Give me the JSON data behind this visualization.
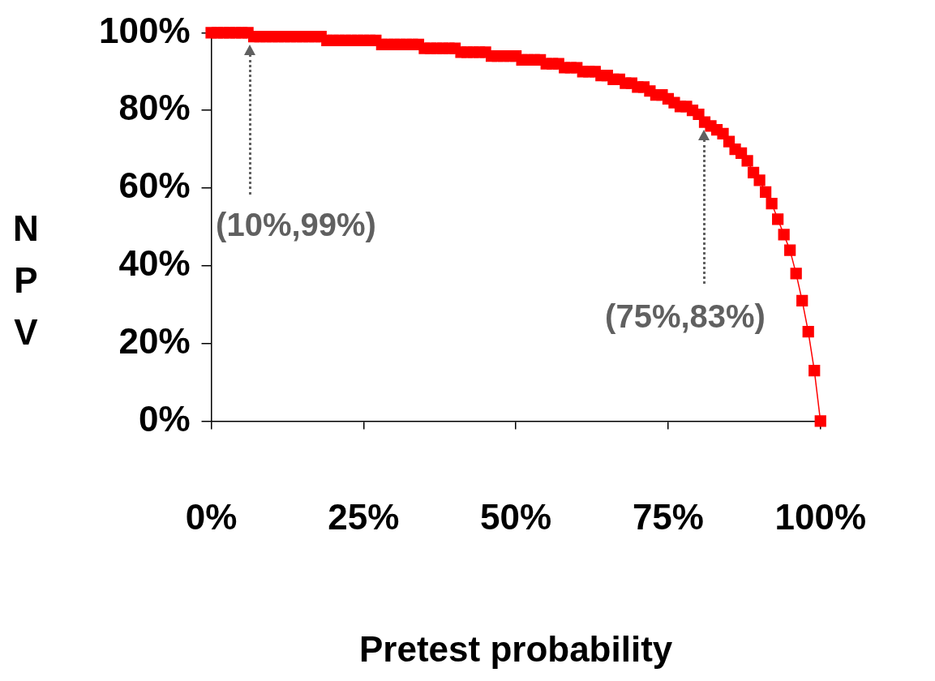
{
  "chart_data": {
    "type": "line",
    "xlabel": "Pretest probability",
    "ylabel": "NPV",
    "x": [
      0,
      1,
      2,
      3,
      4,
      5,
      6,
      7,
      8,
      9,
      10,
      11,
      12,
      13,
      14,
      15,
      16,
      17,
      18,
      19,
      20,
      21,
      22,
      23,
      24,
      25,
      26,
      27,
      28,
      29,
      30,
      31,
      32,
      33,
      34,
      35,
      36,
      37,
      38,
      39,
      40,
      41,
      42,
      43,
      44,
      45,
      46,
      47,
      48,
      49,
      50,
      51,
      52,
      53,
      54,
      55,
      56,
      57,
      58,
      59,
      60,
      61,
      62,
      63,
      64,
      65,
      66,
      67,
      68,
      69,
      70,
      71,
      72,
      73,
      74,
      75,
      76,
      77,
      78,
      79,
      80,
      81,
      82,
      83,
      84,
      85,
      86,
      87,
      88,
      89,
      90,
      91,
      92,
      93,
      94,
      95,
      96,
      97,
      98,
      99,
      100
    ],
    "series": [
      {
        "color": "#ff0000",
        "values": [
          100,
          100,
          100,
          100,
          100,
          100,
          100,
          99,
          99,
          99,
          99,
          99,
          99,
          99,
          99,
          99,
          99,
          99,
          99,
          98,
          98,
          98,
          98,
          98,
          98,
          98,
          98,
          98,
          97,
          97,
          97,
          97,
          97,
          97,
          97,
          96,
          96,
          96,
          96,
          96,
          96,
          95,
          95,
          95,
          95,
          95,
          94,
          94,
          94,
          94,
          94,
          93,
          93,
          93,
          93,
          92,
          92,
          92,
          91,
          91,
          91,
          90,
          90,
          90,
          89,
          89,
          88,
          88,
          87,
          87,
          86,
          86,
          85,
          84,
          84,
          83,
          82,
          81,
          81,
          80,
          79,
          77,
          76,
          75,
          74,
          72,
          70,
          69,
          67,
          64,
          62,
          59,
          56,
          52,
          48,
          44,
          38,
          31,
          23,
          13,
          0
        ]
      }
    ],
    "xlim": [
      0,
      100
    ],
    "xticks": [
      {
        "value": 0,
        "label": "0%"
      },
      {
        "value": 25,
        "label": "25%"
      },
      {
        "value": 50,
        "label": "50%"
      },
      {
        "value": 75,
        "label": "75%"
      },
      {
        "value": 100,
        "label": "100%"
      }
    ],
    "ylim": [
      0,
      100
    ],
    "yticks": [
      {
        "value": 0,
        "label": "0%"
      },
      {
        "value": 20,
        "label": "20%"
      },
      {
        "value": 40,
        "label": "40%"
      },
      {
        "value": 60,
        "label": "60%"
      },
      {
        "value": 80,
        "label": "80%"
      },
      {
        "value": 100,
        "label": "100%"
      }
    ],
    "annotations": [
      "(10%,99%)",
      "(75%,83%)"
    ],
    "grid": false,
    "legend": false,
    "marker": "square",
    "line_style": "solid"
  }
}
